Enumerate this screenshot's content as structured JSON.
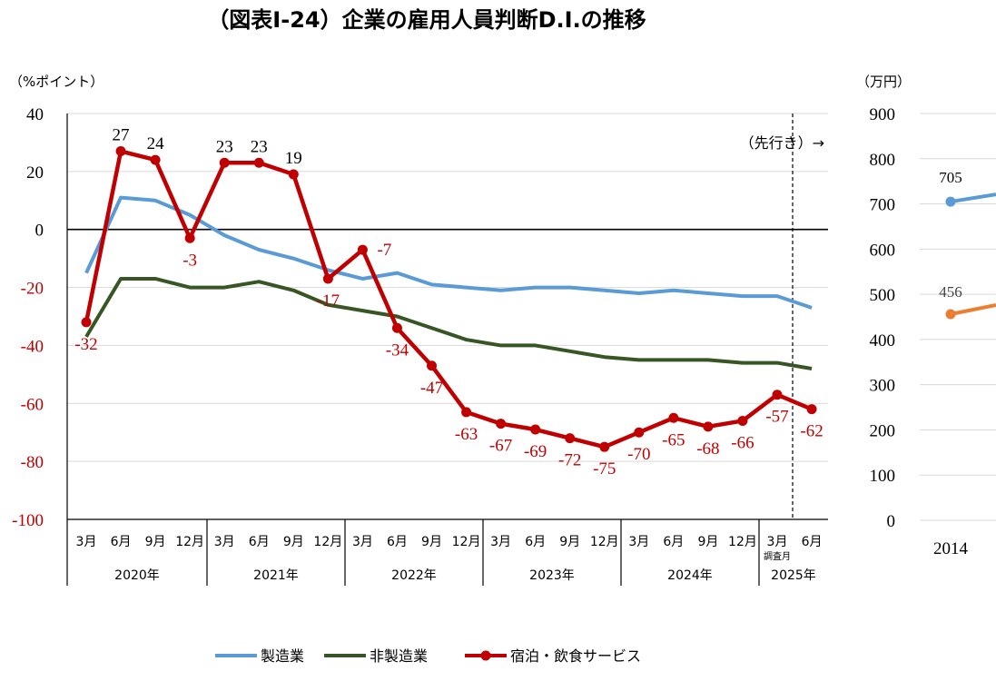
{
  "chart_data": [
    {
      "type": "line",
      "title": "（図表Ⅰ-24）企業の雇用人員判断D.I.の推移",
      "ylabel": "（%ポイント）",
      "ylim": [
        -100,
        40
      ],
      "yticks": [
        40,
        20,
        0,
        -20,
        -40,
        -60,
        -80,
        -100
      ],
      "grid": true,
      "months": [
        "3月",
        "6月",
        "9月",
        "12月",
        "3月",
        "6月",
        "9月",
        "12月",
        "3月",
        "6月",
        "9月",
        "12月",
        "3月",
        "6月",
        "9月",
        "12月",
        "3月",
        "6月",
        "9月",
        "12月",
        "3月",
        "6月"
      ],
      "years": [
        "2020年",
        "2021年",
        "2022年",
        "2023年",
        "2024年",
        "2025年"
      ],
      "survey_month_label": "調査月",
      "forecast_label": "（先行き）→",
      "legend_position": "bottom",
      "series": [
        {
          "name": "製造業",
          "color": "#5b9bd5",
          "markers": false,
          "values": [
            -15,
            11,
            10,
            5,
            -2,
            -7,
            -10,
            -14,
            -17,
            -15,
            -19,
            -20,
            -21,
            -20,
            -20,
            -21,
            -22,
            -21,
            -22,
            -23,
            -23,
            -27
          ]
        },
        {
          "name": "非製造業",
          "color": "#375623",
          "markers": false,
          "values": [
            -37,
            -17,
            -17,
            -20,
            -20,
            -18,
            -21,
            -26,
            -28,
            -30,
            -34,
            -38,
            -40,
            -40,
            -42,
            -44,
            -45,
            -45,
            -45,
            -46,
            -46,
            -48
          ]
        },
        {
          "name": "宿泊・飲食サービス",
          "color": "#c00000",
          "markers": true,
          "data_labels": true,
          "values": [
            -32,
            27,
            24,
            -3,
            23,
            23,
            19,
            -17,
            -7,
            -34,
            -47,
            -63,
            -67,
            -69,
            -72,
            -75,
            -70,
            -65,
            -68,
            -66,
            -57,
            -62
          ]
        }
      ]
    },
    {
      "type": "line",
      "ylabel": "（万円）",
      "ylim": [
        0,
        900
      ],
      "yticks": [
        900,
        800,
        700,
        600,
        500,
        400,
        300,
        200,
        100,
        0
      ],
      "grid": true,
      "categories": [
        "2014"
      ],
      "series": [
        {
          "color": "#5b9bd5",
          "values": [
            705
          ]
        },
        {
          "color": "#ed7d31",
          "values": [
            456
          ]
        }
      ]
    }
  ]
}
